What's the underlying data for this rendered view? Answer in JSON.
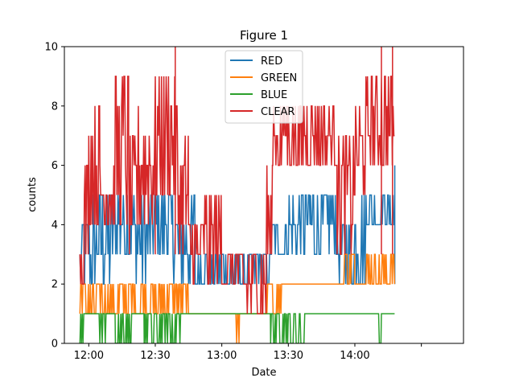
{
  "window": {
    "title": "Figure 1"
  },
  "chart_data": {
    "type": "line",
    "title": "Figure 1",
    "xlabel": "Date",
    "ylabel": "counts",
    "xlim": [
      "11:49",
      "14:49"
    ],
    "ylim": [
      0,
      10
    ],
    "x_tick_labels": [
      "12:00",
      "12:30",
      "13:00",
      "13:30",
      "14:00"
    ],
    "y_tick_labels": [
      "0",
      "2",
      "4",
      "6",
      "8",
      "10"
    ],
    "y_ticks": [
      0,
      2,
      4,
      6,
      8,
      10
    ],
    "grid": false,
    "legend": {
      "placement": "top-center",
      "entries": [
        "RED",
        "GREEN",
        "BLUE",
        "CLEAR"
      ]
    },
    "series": [
      {
        "name": "RED",
        "color": "#1f77b4",
        "base": 2,
        "segments": [
          [
            "11:56",
            "12:02",
            2,
            4
          ],
          [
            "12:02",
            "12:10",
            2,
            5
          ],
          [
            "12:10",
            "12:20",
            3,
            5
          ],
          [
            "12:20",
            "12:28",
            2,
            5
          ],
          [
            "12:28",
            "12:38",
            3,
            5
          ],
          [
            "12:38",
            "12:48",
            2,
            5
          ],
          [
            "12:48",
            "12:54",
            2,
            3
          ],
          [
            "12:54",
            "13:00",
            2,
            3
          ],
          [
            "13:00",
            "13:10",
            2,
            3
          ],
          [
            "13:10",
            "13:22",
            2,
            3
          ],
          [
            "13:22",
            "13:30",
            3,
            4
          ],
          [
            "13:30",
            "13:40",
            3,
            5
          ],
          [
            "13:40",
            "13:52",
            3,
            5
          ],
          [
            "13:52",
            "14:00",
            2,
            4
          ],
          [
            "14:00",
            "14:05",
            2,
            5
          ],
          [
            "14:05",
            "14:18",
            4,
            5
          ]
        ],
        "spikes": [
          [
            "14:18",
            6
          ]
        ]
      },
      {
        "name": "GREEN",
        "color": "#ff7f0e",
        "base": 1,
        "segments": [
          [
            "11:56",
            "12:00",
            1,
            2
          ],
          [
            "12:00",
            "12:08",
            1,
            2
          ],
          [
            "12:08",
            "12:18",
            1,
            2
          ],
          [
            "12:18",
            "12:26",
            1,
            2
          ],
          [
            "12:26",
            "12:36",
            1,
            2
          ],
          [
            "12:36",
            "12:45",
            1,
            2
          ],
          [
            "12:45",
            "13:00",
            1,
            1
          ],
          [
            "13:00",
            "13:06",
            1,
            1
          ],
          [
            "13:06",
            "13:08",
            0,
            1
          ],
          [
            "13:08",
            "13:20",
            1,
            1
          ],
          [
            "13:20",
            "13:27",
            1,
            2
          ],
          [
            "13:27",
            "13:55",
            2,
            2
          ],
          [
            "13:55",
            "14:00",
            2,
            3
          ],
          [
            "14:00",
            "14:05",
            2,
            2
          ],
          [
            "14:05",
            "14:18",
            2,
            3
          ]
        ],
        "spikes": []
      },
      {
        "name": "BLUE",
        "color": "#2ca02c",
        "base": 1,
        "segments": [
          [
            "11:56",
            "11:58",
            0,
            1
          ],
          [
            "11:58",
            "12:05",
            1,
            1
          ],
          [
            "12:05",
            "12:08",
            0,
            1
          ],
          [
            "12:08",
            "12:12",
            1,
            1
          ],
          [
            "12:12",
            "12:20",
            0,
            1
          ],
          [
            "12:20",
            "12:25",
            1,
            1
          ],
          [
            "12:25",
            "12:42",
            0,
            1
          ],
          [
            "12:42",
            "13:22",
            1,
            1
          ],
          [
            "13:22",
            "13:38",
            0,
            1
          ],
          [
            "13:38",
            "14:10",
            1,
            1
          ],
          [
            "14:10",
            "14:12",
            0,
            1
          ],
          [
            "14:12",
            "14:18",
            1,
            1
          ]
        ],
        "spikes": []
      },
      {
        "name": "CLEAR",
        "color": "#d62728",
        "base": 3,
        "segments": [
          [
            "11:56",
            "11:58",
            2,
            3
          ],
          [
            "11:58",
            "12:00",
            3,
            6
          ],
          [
            "12:00",
            "12:05",
            4,
            8
          ],
          [
            "12:05",
            "12:12",
            4,
            6
          ],
          [
            "12:12",
            "12:18",
            4,
            9
          ],
          [
            "12:18",
            "12:22",
            3,
            7
          ],
          [
            "12:22",
            "12:30",
            4,
            8
          ],
          [
            "12:30",
            "12:40",
            5,
            9
          ],
          [
            "12:40",
            "12:45",
            3,
            7
          ],
          [
            "12:45",
            "12:52",
            2,
            4
          ],
          [
            "12:52",
            "13:00",
            2,
            5
          ],
          [
            "13:00",
            "13:08",
            2,
            3
          ],
          [
            "13:08",
            "13:20",
            1,
            3
          ],
          [
            "13:20",
            "13:23",
            2,
            6
          ],
          [
            "13:23",
            "13:40",
            6,
            8
          ],
          [
            "13:40",
            "13:52",
            6,
            8
          ],
          [
            "13:52",
            "14:00",
            3,
            7
          ],
          [
            "14:00",
            "14:05",
            5,
            8
          ],
          [
            "14:05",
            "14:18",
            6,
            9
          ]
        ],
        "spikes": [
          [
            "12:39",
            10
          ],
          [
            "12:30",
            9
          ],
          [
            "14:12",
            10
          ],
          [
            "14:17",
            10
          ]
        ]
      }
    ]
  }
}
